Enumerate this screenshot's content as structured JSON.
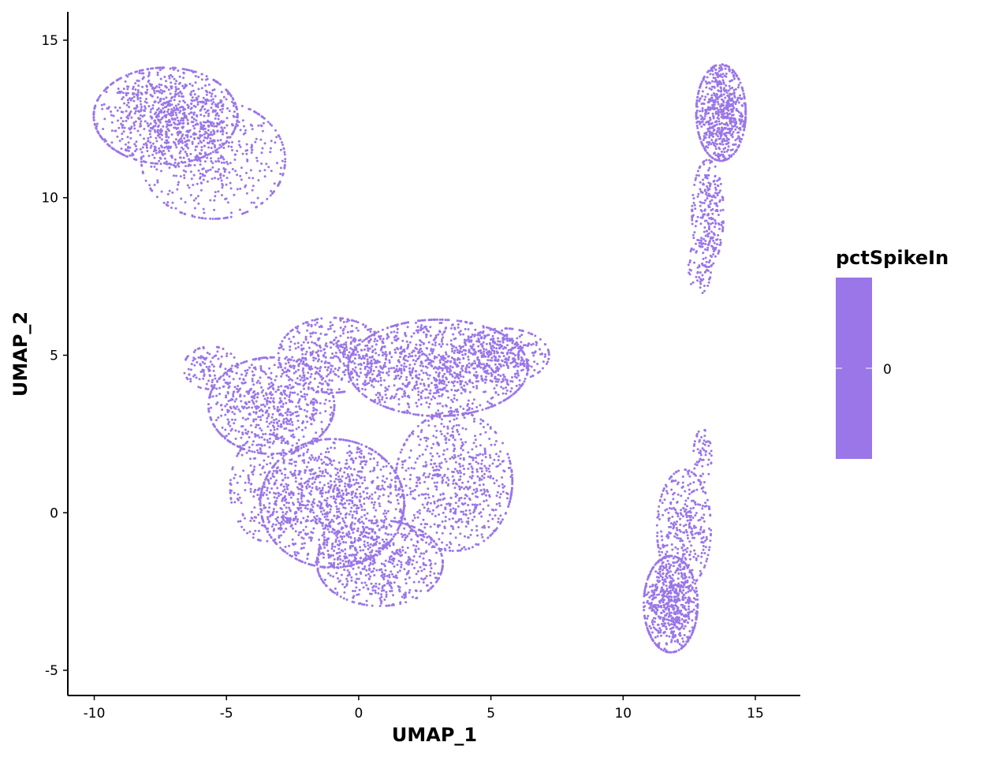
{
  "chart_data": {
    "type": "scatter",
    "xlabel": "UMAP_1",
    "ylabel": "UMAP_2",
    "xlim": [
      -11,
      16.7
    ],
    "ylim": [
      -5.8,
      15.9
    ],
    "x_ticks": [
      -10,
      -5,
      0,
      5,
      10,
      15
    ],
    "x_tick_labels": [
      "-10",
      "-5",
      "0",
      "5",
      "10",
      "15"
    ],
    "y_ticks": [
      -5,
      0,
      5,
      10,
      15
    ],
    "y_tick_labels": [
      "-5",
      "0",
      "5",
      "10",
      "15"
    ],
    "grid": false,
    "point_color": "#9A76E8",
    "legend": {
      "title": "pctSpikeIn",
      "placement": "right",
      "type": "colorbar",
      "tick_labels": [
        "0"
      ],
      "color": "#9A76E8"
    },
    "clusters": [
      {
        "center": [
          -7.3,
          12.6
        ],
        "spread": [
          1.6,
          0.9
        ],
        "n": 900
      },
      {
        "center": [
          -5.5,
          11.2
        ],
        "spread": [
          1.6,
          1.1
        ],
        "n": 500
      },
      {
        "center": [
          13.7,
          12.7
        ],
        "spread": [
          0.55,
          0.9
        ],
        "n": 700
      },
      {
        "center": [
          13.2,
          9.5
        ],
        "spread": [
          0.35,
          1.0
        ],
        "n": 250
      },
      {
        "center": [
          12.9,
          7.8
        ],
        "spread": [
          0.25,
          0.5
        ],
        "n": 60
      },
      {
        "center": [
          -3.3,
          3.4
        ],
        "spread": [
          1.4,
          0.9
        ],
        "n": 700
      },
      {
        "center": [
          -1.0,
          5.0
        ],
        "spread": [
          1.2,
          0.7
        ],
        "n": 450
      },
      {
        "center": [
          -5.6,
          4.6
        ],
        "spread": [
          0.6,
          0.4
        ],
        "n": 120
      },
      {
        "center": [
          3.0,
          4.6
        ],
        "spread": [
          2.0,
          0.9
        ],
        "n": 1100
      },
      {
        "center": [
          5.5,
          5.0
        ],
        "spread": [
          1.0,
          0.5
        ],
        "n": 300
      },
      {
        "center": [
          -1.0,
          0.3
        ],
        "spread": [
          1.6,
          1.2
        ],
        "n": 1100
      },
      {
        "center": [
          0.8,
          -1.6
        ],
        "spread": [
          1.4,
          0.8
        ],
        "n": 600
      },
      {
        "center": [
          3.6,
          1.0
        ],
        "spread": [
          1.3,
          1.3
        ],
        "n": 700
      },
      {
        "center": [
          -3.5,
          0.8
        ],
        "spread": [
          0.8,
          1.0
        ],
        "n": 250
      },
      {
        "center": [
          11.8,
          -2.9
        ],
        "spread": [
          0.6,
          0.9
        ],
        "n": 700
      },
      {
        "center": [
          12.3,
          -0.5
        ],
        "spread": [
          0.6,
          1.1
        ],
        "n": 350
      },
      {
        "center": [
          13.0,
          1.8
        ],
        "spread": [
          0.2,
          0.5
        ],
        "n": 60
      }
    ]
  }
}
